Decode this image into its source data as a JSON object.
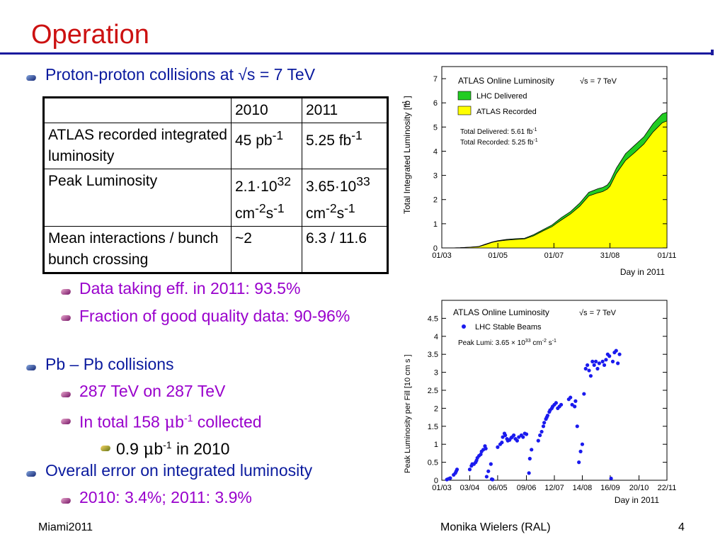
{
  "slide": {
    "title": "Operation",
    "footer_left": "Miami2011",
    "footer_center": "Monika Wielers (RAL)",
    "page_number": "4"
  },
  "bullets": {
    "pp": {
      "text": "Proton-proton collisions at √s = 7 TeV"
    },
    "eff": {
      "text": "Data taking eff. in 2011: 93.5%"
    },
    "quality": {
      "text": "Fraction of good quality data: 90-96%"
    },
    "pb": {
      "text": "Pb – Pb collisions"
    },
    "energy": {
      "text": "287 TeV on 287 TeV"
    },
    "total": {
      "pre": "In total 158 ",
      "mu": "μ",
      "b": "b",
      "sup": "-1",
      "post": " collected"
    },
    "sub2010": {
      "pre": "0.9 ",
      "mu": "μ",
      "b": "b",
      "sup": "-1",
      "post": " in 2010"
    },
    "error": {
      "text": "Overall error on integrated luminosity"
    },
    "errval": {
      "text": "2010: 3.4%; 2011: 3.9%"
    }
  },
  "table": {
    "header": {
      "c0": "",
      "c1": "2010",
      "c2": "2011"
    },
    "row1": {
      "label": "ATLAS recorded integrated luminosity",
      "v2010": "45 pb",
      "v2010_sup": "-1",
      "v2011": "5.25 fb",
      "v2011_sup": "-1"
    },
    "row2": {
      "label": "Peak Luminosity",
      "v2010_a": "2.1·10",
      "v2010_exp": "32",
      "v2010_b": "cm",
      "v2010_b_sup": "-2",
      "v2010_c": "s",
      "v2010_c_sup": "-1",
      "v2011_a": "3.65·10",
      "v2011_exp": "33",
      "v2011_b": "cm",
      "v2011_b_sup": "-2",
      "v2011_c": "s",
      "v2011_c_sup": "-1"
    },
    "row3": {
      "label": "Mean interactions / bunch bunch crossing",
      "v2010": "~2",
      "v2011": "6.3 / 11.6"
    }
  },
  "colors": {
    "title": "#cc1111",
    "level1": "#0a1a9e",
    "level2": "#9900cc",
    "delivered": "#22cc22",
    "recorded": "#ffff00",
    "points": "#1a1aee"
  },
  "chart_data": [
    {
      "type": "area",
      "title": "ATLAS Online Luminosity",
      "energy_label": "√s = 7 TeV",
      "xlabel": "Day in 2011",
      "ylabel": "Total Integrated Luminosity [fb  ]",
      "ylabel_sup": "-1",
      "xticks": [
        "01/03",
        "01/05",
        "01/07",
        "31/08",
        "01/11"
      ],
      "xtick_days": [
        0,
        61,
        122,
        183,
        245
      ],
      "xlim": [
        0,
        245
      ],
      "ylim": [
        0,
        7.5
      ],
      "yticks": [
        0,
        1,
        2,
        3,
        4,
        5,
        6,
        7
      ],
      "legend_placement": "top-left",
      "annotations": [
        "Total Delivered: 5.61 fb",
        "Total Recorded: 5.25 fb"
      ],
      "annotation_sup": "-1",
      "series": [
        {
          "name": "LHC Delivered",
          "color": "#22cc22",
          "x": [
            0,
            10,
            20,
            30,
            40,
            47,
            55,
            61,
            70,
            80,
            90,
            100,
            110,
            120,
            125,
            130,
            140,
            150,
            160,
            170,
            175,
            180,
            183,
            190,
            200,
            210,
            220,
            230,
            240,
            245
          ],
          "y": [
            0,
            0,
            0.01,
            0.03,
            0.06,
            0.15,
            0.25,
            0.3,
            0.35,
            0.38,
            0.4,
            0.55,
            0.75,
            0.95,
            1.1,
            1.25,
            1.5,
            1.85,
            2.3,
            2.45,
            2.5,
            2.6,
            2.75,
            3.3,
            3.9,
            4.25,
            4.6,
            5.15,
            5.55,
            5.61
          ]
        },
        {
          "name": "ATLAS Recorded",
          "color": "#ffff00",
          "x": [
            0,
            10,
            20,
            30,
            40,
            47,
            55,
            61,
            70,
            80,
            90,
            100,
            110,
            120,
            125,
            130,
            140,
            150,
            160,
            170,
            175,
            180,
            183,
            190,
            200,
            210,
            220,
            230,
            240,
            245
          ],
          "y": [
            0,
            0,
            0.01,
            0.03,
            0.05,
            0.13,
            0.23,
            0.28,
            0.32,
            0.35,
            0.37,
            0.5,
            0.7,
            0.88,
            1.02,
            1.15,
            1.4,
            1.72,
            2.15,
            2.28,
            2.33,
            2.43,
            2.55,
            3.08,
            3.62,
            3.95,
            4.3,
            4.8,
            5.18,
            5.25
          ]
        }
      ]
    },
    {
      "type": "scatter",
      "title": "ATLAS Online Luminosity",
      "energy_label": "√s = 7 TeV",
      "xlabel": "Day in 2011",
      "ylabel": "Peak Luminosity per Fill [10    cm   s  ]",
      "ylabel_sup_a": "33",
      "ylabel_sup_b": "-2",
      "ylabel_sup_c": "-1",
      "xticks": [
        "01/03",
        "03/04",
        "06/05",
        "09/06",
        "12/07",
        "14/08",
        "16/09",
        "20/10",
        "22/11"
      ],
      "xtick_days": [
        0,
        33,
        66,
        100,
        133,
        166,
        199,
        233,
        266
      ],
      "xlim": [
        0,
        266
      ],
      "ylim": [
        0,
        5
      ],
      "yticks": [
        "0",
        "0.5",
        "1",
        "1.5",
        "2",
        "2.5",
        "3",
        "3.5",
        "4",
        "4.5"
      ],
      "legend_placement": "top-left",
      "annotation": {
        "pre": "Peak Lumi: 3.65 × 10",
        "exp": "33",
        "post": " cm",
        "s1": "-2",
        "post2": " s",
        "s2": "-1"
      },
      "series": [
        {
          "name": "LHC Stable Beams",
          "color": "#1a1aee",
          "x": [
            6,
            8,
            10,
            14,
            16,
            17,
            18,
            33,
            35,
            36,
            38,
            40,
            41,
            42,
            44,
            46,
            47,
            49,
            51,
            52,
            53,
            55,
            58,
            59,
            60,
            66,
            69,
            71,
            72,
            74,
            75,
            77,
            78,
            80,
            82,
            83,
            85,
            87,
            89,
            91,
            94,
            96,
            98,
            100,
            103,
            104,
            106,
            114,
            116,
            118,
            120,
            121,
            123,
            124,
            125,
            127,
            128,
            130,
            131,
            133,
            135,
            137,
            139,
            141,
            150,
            152,
            154,
            157,
            158,
            160,
            162,
            164,
            166,
            168,
            170,
            172,
            174,
            176,
            178,
            180,
            182,
            184,
            186,
            190,
            192,
            194,
            196,
            198,
            200,
            202,
            204,
            206,
            208,
            210
          ],
          "y": [
            0.02,
            0.04,
            0.06,
            0.15,
            0.2,
            0.25,
            0.3,
            0.3,
            0.4,
            0.45,
            0.45,
            0.5,
            0.55,
            0.62,
            0.68,
            0.72,
            0.8,
            0.85,
            0.95,
            0.88,
            0.1,
            0.25,
            0.45,
            0.03,
            0.02,
            0.92,
            1.0,
            1.05,
            1.2,
            1.3,
            1.25,
            1.15,
            1.1,
            1.12,
            1.18,
            1.2,
            1.25,
            1.15,
            1.1,
            1.2,
            1.25,
            1.2,
            1.3,
            1.28,
            0.2,
            0.6,
            0.85,
            1.1,
            1.25,
            1.35,
            1.5,
            1.6,
            1.7,
            1.75,
            1.8,
            1.9,
            1.95,
            2.0,
            2.05,
            2.1,
            2.15,
            2.0,
            2.05,
            2.1,
            2.25,
            2.3,
            2.1,
            2.05,
            2.2,
            1.5,
            0.5,
            0.8,
            1.0,
            2.4,
            3.1,
            3.2,
            3.05,
            2.9,
            3.3,
            3.2,
            3.3,
            3.1,
            3.25,
            3.3,
            3.2,
            3.35,
            3.5,
            3.45,
            0.05,
            3.3,
            3.55,
            3.6,
            3.25,
            3.5
          ]
        }
      ]
    }
  ]
}
